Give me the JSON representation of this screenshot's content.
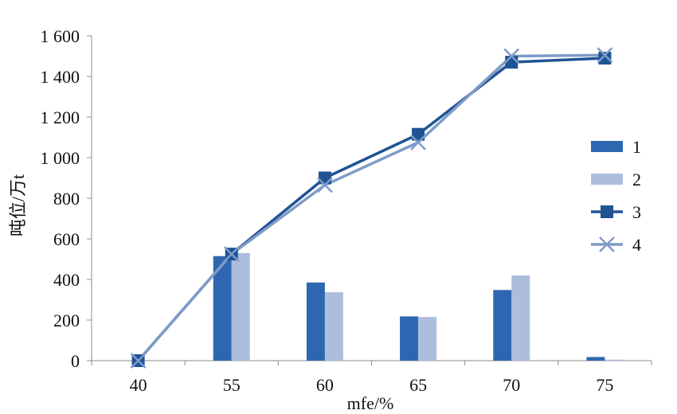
{
  "chart_data": {
    "type": "bar",
    "title": "",
    "xlabel": "mfe/%",
    "ylabel": "吨位/万t",
    "categories": [
      "40",
      "55",
      "60",
      "65",
      "70",
      "75"
    ],
    "ylim": [
      0,
      1600
    ],
    "yticks": [
      0,
      200,
      400,
      600,
      800,
      1000,
      1200,
      1400,
      1600
    ],
    "ytick_labels": [
      "0",
      "200",
      "400",
      "600",
      "800",
      "1 000",
      "1 200",
      "1 400",
      "1 600"
    ],
    "grid": false,
    "legend_position": "right",
    "series": [
      {
        "name": "1",
        "kind": "bar",
        "color": "#2e67b1",
        "values": [
          0,
          515,
          385,
          218,
          348,
          18
        ]
      },
      {
        "name": "2",
        "kind": "bar",
        "color": "#adbedd",
        "values": [
          0,
          530,
          337,
          215,
          420,
          5
        ]
      },
      {
        "name": "3",
        "kind": "line",
        "marker": "square",
        "color": "#1f5394",
        "values": [
          0,
          525,
          900,
          1115,
          1470,
          1490
        ]
      },
      {
        "name": "4",
        "kind": "line",
        "marker": "x",
        "color": "#7f9bc8",
        "values": [
          0,
          525,
          865,
          1075,
          1500,
          1505
        ]
      }
    ]
  }
}
